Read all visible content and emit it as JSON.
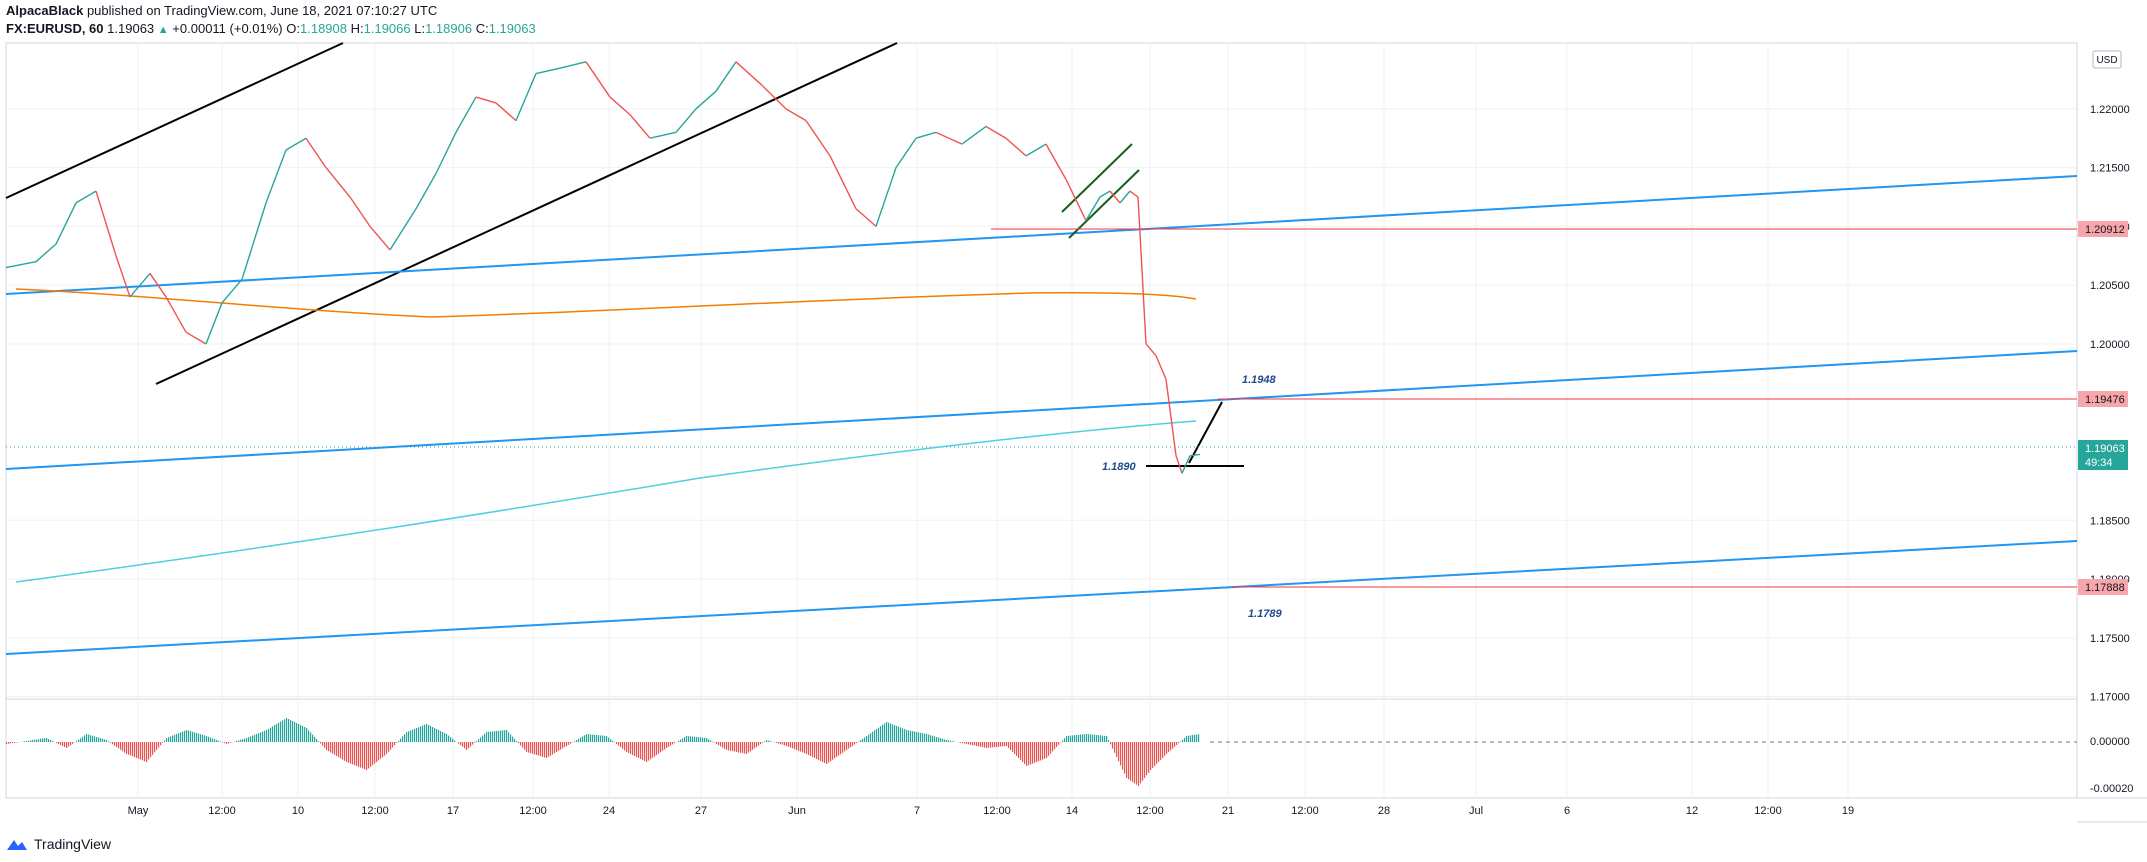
{
  "header": {
    "author": "AlpacaBlack",
    "published": "published on TradingView.com, June 18, 2021 07:10:27 UTC",
    "symbol": "FX:EURUSD, 60",
    "last": "1.19063",
    "change": "+0.00011 (+0.01%)",
    "o_label": "O:",
    "o_value": "1.18908",
    "h_label": "H:",
    "h_value": "1.19066",
    "l_label": "L:",
    "l_value": "1.18906",
    "c_label": "C:",
    "c_value": "1.19063"
  },
  "footer": {
    "brand": "TradingView"
  },
  "colors": {
    "up": "#26a69a",
    "down": "#ef5350",
    "blue": "#2196f3",
    "orange": "#f57c00",
    "cyan": "#4dd0e1",
    "level": "#f23645",
    "last_price_bg": "#26a69a",
    "grid": "#eef0f3",
    "axis_text": "#131722",
    "green_line": "#1b5e20"
  },
  "chart_data": {
    "type": "line",
    "symbol": "FX:EURUSD",
    "interval": "60",
    "currency_badge": "USD",
    "x_ticks": [
      "May",
      "12:00",
      "10",
      "12:00",
      "17",
      "12:00",
      "24",
      "27",
      "Jun",
      "7",
      "12:00",
      "14",
      "12:00",
      "21",
      "12:00",
      "28",
      "Jul",
      "6",
      "12",
      "12:00",
      "19"
    ],
    "y_ticks": [
      "1.22000",
      "1.21500",
      "1.21000",
      "1.20500",
      "1.20000",
      "1.18500",
      "1.18000",
      "1.17500",
      "1.17000"
    ],
    "ylim": [
      1.1698,
      1.2256
    ],
    "price_series": [
      [
        0,
        1.2065
      ],
      [
        15,
        1.207
      ],
      [
        25,
        1.2085
      ],
      [
        35,
        1.212
      ],
      [
        45,
        1.213
      ],
      [
        55,
        1.2075
      ],
      [
        62,
        1.204
      ],
      [
        72,
        1.206
      ],
      [
        80,
        1.204
      ],
      [
        90,
        1.201
      ],
      [
        100,
        1.2
      ],
      [
        108,
        1.2035
      ],
      [
        118,
        1.2055
      ],
      [
        130,
        1.212
      ],
      [
        140,
        1.2165
      ],
      [
        150,
        1.2175
      ],
      [
        160,
        1.215
      ],
      [
        172,
        1.2125
      ],
      [
        182,
        1.21
      ],
      [
        192,
        1.208
      ],
      [
        205,
        1.2115
      ],
      [
        215,
        1.2145
      ],
      [
        225,
        1.218
      ],
      [
        235,
        1.221
      ],
      [
        245,
        1.2205
      ],
      [
        255,
        1.219
      ],
      [
        265,
        1.223
      ],
      [
        278,
        1.2235
      ],
      [
        290,
        1.224
      ],
      [
        302,
        1.221
      ],
      [
        312,
        1.2195
      ],
      [
        322,
        1.2175
      ],
      [
        335,
        1.218
      ],
      [
        345,
        1.22
      ],
      [
        355,
        1.2215
      ],
      [
        365,
        1.224
      ],
      [
        378,
        1.222
      ],
      [
        390,
        1.22
      ],
      [
        400,
        1.219
      ],
      [
        412,
        1.216
      ],
      [
        425,
        1.2115
      ],
      [
        435,
        1.21
      ],
      [
        445,
        1.215
      ],
      [
        455,
        1.2175
      ],
      [
        465,
        1.218
      ],
      [
        478,
        1.217
      ],
      [
        490,
        1.2185
      ],
      [
        500,
        1.2175
      ],
      [
        510,
        1.216
      ],
      [
        520,
        1.217
      ],
      [
        530,
        1.214
      ],
      [
        540,
        1.2105
      ],
      [
        547,
        1.2125
      ],
      [
        552,
        1.213
      ],
      [
        557,
        1.212
      ],
      [
        562,
        1.213
      ],
      [
        566,
        1.2125
      ],
      [
        570,
        1.2
      ],
      [
        575,
        1.199
      ],
      [
        580,
        1.197
      ],
      [
        585,
        1.1905
      ],
      [
        588,
        1.189
      ],
      [
        592,
        1.1905
      ],
      [
        597,
        1.1906
      ]
    ],
    "oscillator": {
      "ylim": [
        -0.00025,
        0.00025
      ],
      "y_ticks": [
        "0.00000",
        "-0.00020"
      ],
      "values": [
        [
          0,
          -1e-05
        ],
        [
          20,
          2e-05
        ],
        [
          30,
          -3e-05
        ],
        [
          40,
          4e-05
        ],
        [
          50,
          1e-05
        ],
        [
          60,
          -6e-05
        ],
        [
          70,
          -0.0001
        ],
        [
          80,
          2e-05
        ],
        [
          90,
          6e-05
        ],
        [
          100,
          3e-05
        ],
        [
          110,
          -1e-05
        ],
        [
          120,
          2e-05
        ],
        [
          130,
          6e-05
        ],
        [
          140,
          0.00012
        ],
        [
          150,
          7e-05
        ],
        [
          160,
          -4e-05
        ],
        [
          170,
          -0.0001
        ],
        [
          180,
          -0.00014
        ],
        [
          190,
          -6e-05
        ],
        [
          200,
          5e-05
        ],
        [
          210,
          9e-05
        ],
        [
          220,
          4e-05
        ],
        [
          230,
          -4e-05
        ],
        [
          240,
          5e-05
        ],
        [
          250,
          6e-05
        ],
        [
          260,
          -5e-05
        ],
        [
          270,
          -8e-05
        ],
        [
          280,
          -2e-05
        ],
        [
          290,
          4e-05
        ],
        [
          300,
          3e-05
        ],
        [
          310,
          -5e-05
        ],
        [
          320,
          -0.0001
        ],
        [
          330,
          -3e-05
        ],
        [
          340,
          3e-05
        ],
        [
          350,
          2e-05
        ],
        [
          360,
          -4e-05
        ],
        [
          370,
          -6e-05
        ],
        [
          380,
          1e-05
        ],
        [
          390,
          -2e-05
        ],
        [
          400,
          -6e-05
        ],
        [
          410,
          -0.00011
        ],
        [
          420,
          -4e-05
        ],
        [
          430,
          3e-05
        ],
        [
          440,
          0.0001
        ],
        [
          450,
          6e-05
        ],
        [
          460,
          4e-05
        ],
        [
          470,
          1e-05
        ],
        [
          480,
          -1e-05
        ],
        [
          490,
          -3e-05
        ],
        [
          500,
          -2e-05
        ],
        [
          510,
          -0.00012
        ],
        [
          520,
          -8e-05
        ],
        [
          530,
          3e-05
        ],
        [
          540,
          4e-05
        ],
        [
          550,
          3e-05
        ],
        [
          560,
          -0.00018
        ],
        [
          566,
          -0.00022
        ],
        [
          572,
          -0.00014
        ],
        [
          580,
          -6e-05
        ],
        [
          590,
          3e-05
        ],
        [
          597,
          4e-05
        ]
      ]
    },
    "price_labels": {
      "level_1": "1.20912",
      "level_2": "1.19476",
      "level_3": "1.17888",
      "last_price": "1.19063",
      "countdown": "49:34"
    },
    "annotations": {
      "a1948": "1.1948",
      "a1890": "1.1890",
      "a1789": "1.1789"
    },
    "horizontal_levels": [
      1.20912,
      1.19476,
      1.17888,
      1.189
    ]
  }
}
